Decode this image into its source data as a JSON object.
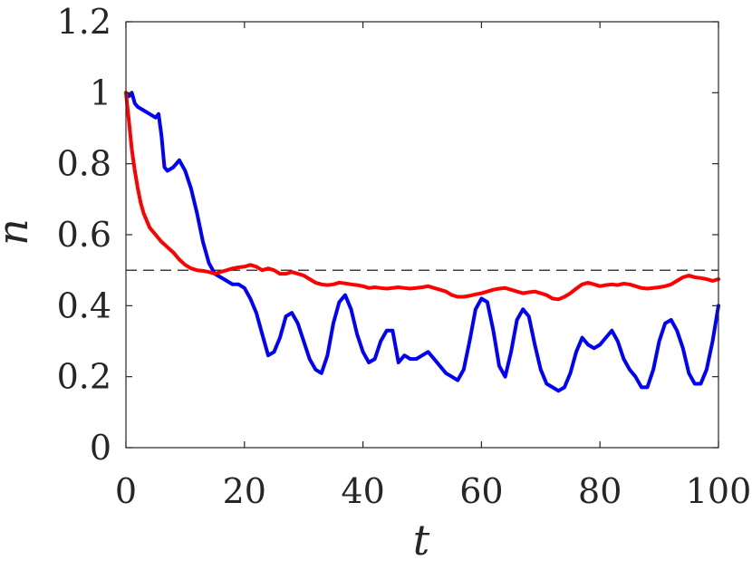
{
  "chart_data": {
    "type": "line",
    "title": "",
    "xlabel": "t",
    "ylabel": "n",
    "xlim": [
      0,
      100
    ],
    "ylim": [
      0,
      1.2
    ],
    "x_ticks": [
      "0",
      "20",
      "40",
      "60",
      "80",
      "100"
    ],
    "y_ticks": [
      "0",
      "0.2",
      "0.4",
      "0.6",
      "0.8",
      "1",
      "1.2"
    ],
    "grid": false,
    "legend": "none",
    "reference_line": {
      "y": 0.5,
      "style": "dashed",
      "color": "#000000"
    },
    "series": [
      {
        "color": "#0000ff",
        "x": [
          0,
          0.5,
          1,
          1.5,
          2,
          3,
          4,
          5,
          5.5,
          6,
          6.5,
          7,
          8,
          9,
          10,
          11,
          12,
          13,
          14,
          15,
          16,
          17,
          18,
          19,
          20,
          21,
          22,
          23,
          24,
          25,
          26,
          27,
          28,
          29,
          30,
          31,
          32,
          33,
          34,
          35,
          36,
          37,
          38,
          39,
          40,
          41,
          42,
          43,
          44,
          45,
          46,
          47,
          48,
          49,
          50,
          51,
          52,
          53,
          54,
          55,
          56,
          57,
          58,
          59,
          60,
          61,
          62,
          63,
          64,
          65,
          66,
          67,
          68,
          69,
          70,
          71,
          72,
          73,
          74,
          75,
          76,
          77,
          78,
          79,
          80,
          81,
          82,
          83,
          84,
          85,
          86,
          87,
          88,
          89,
          90,
          91,
          92,
          93,
          94,
          95,
          96,
          97,
          98,
          99,
          100
        ],
        "y": [
          1.0,
          0.99,
          1.0,
          0.97,
          0.96,
          0.95,
          0.94,
          0.93,
          0.94,
          0.88,
          0.79,
          0.78,
          0.79,
          0.81,
          0.78,
          0.73,
          0.66,
          0.58,
          0.52,
          0.49,
          0.48,
          0.47,
          0.46,
          0.46,
          0.45,
          0.42,
          0.38,
          0.32,
          0.26,
          0.27,
          0.31,
          0.37,
          0.38,
          0.35,
          0.3,
          0.25,
          0.22,
          0.21,
          0.26,
          0.35,
          0.41,
          0.43,
          0.39,
          0.32,
          0.27,
          0.24,
          0.25,
          0.3,
          0.33,
          0.33,
          0.24,
          0.26,
          0.25,
          0.25,
          0.26,
          0.27,
          0.25,
          0.23,
          0.21,
          0.2,
          0.19,
          0.22,
          0.3,
          0.39,
          0.42,
          0.41,
          0.33,
          0.23,
          0.2,
          0.27,
          0.36,
          0.39,
          0.37,
          0.29,
          0.22,
          0.18,
          0.17,
          0.16,
          0.17,
          0.21,
          0.27,
          0.31,
          0.29,
          0.28,
          0.29,
          0.31,
          0.33,
          0.3,
          0.25,
          0.22,
          0.2,
          0.17,
          0.17,
          0.22,
          0.3,
          0.35,
          0.36,
          0.33,
          0.28,
          0.21,
          0.18,
          0.18,
          0.22,
          0.3,
          0.4
        ]
      },
      {
        "color": "#ff0000",
        "x": [
          0,
          0.5,
          1,
          1.5,
          2,
          2.5,
          3,
          4,
          5,
          6,
          7,
          8,
          9,
          10,
          11,
          12,
          13,
          14,
          15,
          16,
          17,
          18,
          19,
          20,
          21,
          22,
          23,
          24,
          25,
          26,
          27,
          28,
          29,
          30,
          31,
          32,
          33,
          34,
          35,
          36,
          37,
          38,
          39,
          40,
          41,
          42,
          43,
          44,
          45,
          46,
          47,
          48,
          49,
          50,
          51,
          52,
          53,
          54,
          55,
          56,
          57,
          58,
          59,
          60,
          61,
          62,
          63,
          64,
          65,
          66,
          67,
          68,
          69,
          70,
          71,
          72,
          73,
          74,
          75,
          76,
          77,
          78,
          79,
          80,
          81,
          82,
          83,
          84,
          85,
          86,
          87,
          88,
          89,
          90,
          91,
          92,
          93,
          94,
          95,
          96,
          97,
          98,
          99,
          100
        ],
        "y": [
          1.0,
          0.92,
          0.84,
          0.78,
          0.73,
          0.69,
          0.66,
          0.62,
          0.6,
          0.58,
          0.565,
          0.55,
          0.53,
          0.515,
          0.505,
          0.5,
          0.498,
          0.495,
          0.49,
          0.495,
          0.5,
          0.505,
          0.508,
          0.51,
          0.515,
          0.51,
          0.5,
          0.505,
          0.5,
          0.49,
          0.49,
          0.495,
          0.49,
          0.485,
          0.475,
          0.465,
          0.46,
          0.458,
          0.46,
          0.465,
          0.463,
          0.46,
          0.458,
          0.455,
          0.45,
          0.452,
          0.45,
          0.448,
          0.45,
          0.452,
          0.45,
          0.448,
          0.45,
          0.452,
          0.455,
          0.45,
          0.445,
          0.44,
          0.43,
          0.425,
          0.425,
          0.428,
          0.432,
          0.435,
          0.44,
          0.445,
          0.448,
          0.45,
          0.445,
          0.44,
          0.435,
          0.438,
          0.44,
          0.435,
          0.43,
          0.42,
          0.418,
          0.425,
          0.435,
          0.448,
          0.46,
          0.465,
          0.46,
          0.455,
          0.458,
          0.46,
          0.458,
          0.462,
          0.46,
          0.455,
          0.45,
          0.448,
          0.45,
          0.452,
          0.455,
          0.46,
          0.47,
          0.48,
          0.485,
          0.48,
          0.478,
          0.475,
          0.47,
          0.475
        ]
      }
    ]
  }
}
